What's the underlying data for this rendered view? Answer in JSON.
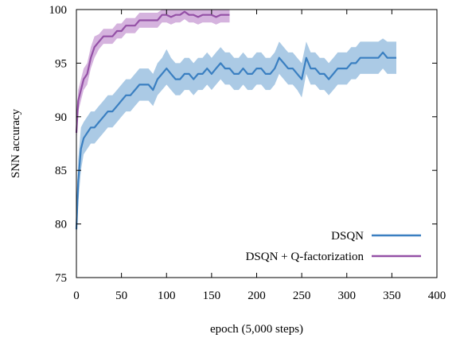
{
  "chart_data": {
    "type": "line",
    "title": "",
    "xlabel": "epoch (5,000 steps)",
    "ylabel": "SNN accuracy",
    "xlim": [
      0,
      400
    ],
    "ylim": [
      75,
      100
    ],
    "xticks": [
      0,
      50,
      100,
      150,
      200,
      250,
      300,
      350,
      400
    ],
    "yticks": [
      75,
      80,
      85,
      90,
      95,
      100
    ],
    "grid": false,
    "legend_position": "lower-right",
    "series": [
      {
        "name": "DSQN",
        "color": "#3a7fc1",
        "band_color": "#8fb8dc",
        "x": [
          0,
          2,
          5,
          8,
          12,
          16,
          20,
          25,
          30,
          35,
          40,
          45,
          50,
          55,
          60,
          65,
          70,
          75,
          80,
          85,
          90,
          95,
          100,
          105,
          110,
          115,
          120,
          125,
          130,
          135,
          140,
          145,
          150,
          155,
          160,
          165,
          170,
          175,
          180,
          185,
          190,
          195,
          200,
          205,
          210,
          215,
          220,
          225,
          230,
          235,
          240,
          245,
          250,
          255,
          260,
          265,
          270,
          275,
          280,
          285,
          290,
          295,
          300,
          305,
          310,
          315,
          320,
          325,
          330,
          335,
          340,
          345,
          350,
          355
        ],
        "values": [
          79.5,
          84.0,
          87.0,
          88.0,
          88.5,
          89.0,
          89.0,
          89.5,
          90.0,
          90.5,
          90.5,
          91.0,
          91.5,
          92.0,
          92.0,
          92.5,
          93.0,
          93.0,
          93.0,
          92.5,
          93.5,
          94.0,
          94.5,
          94.0,
          93.5,
          93.5,
          94.0,
          94.0,
          93.5,
          94.0,
          94.0,
          94.5,
          94.0,
          94.5,
          95.0,
          94.5,
          94.5,
          94.0,
          94.0,
          94.5,
          94.0,
          94.0,
          94.5,
          94.5,
          94.0,
          94.0,
          94.5,
          95.5,
          95.0,
          94.5,
          94.5,
          94.0,
          93.5,
          95.5,
          94.5,
          94.5,
          94.0,
          94.0,
          93.5,
          94.0,
          94.5,
          94.5,
          94.5,
          95.0,
          95.0,
          95.5,
          95.5,
          95.5,
          95.5,
          95.5,
          96.0,
          95.5,
          95.5,
          95.5
        ],
        "lower": [
          78.5,
          82.0,
          85.0,
          86.5,
          87.0,
          87.5,
          87.5,
          88.0,
          88.5,
          89.0,
          89.0,
          89.5,
          90.0,
          90.5,
          90.5,
          91.0,
          91.5,
          91.5,
          91.5,
          91.0,
          92.0,
          92.5,
          93.0,
          92.5,
          92.0,
          92.0,
          92.5,
          92.5,
          92.0,
          92.5,
          92.5,
          93.0,
          92.5,
          93.0,
          93.5,
          93.0,
          93.0,
          92.5,
          92.5,
          93.0,
          92.5,
          92.5,
          93.0,
          93.0,
          92.5,
          92.5,
          93.0,
          94.0,
          93.5,
          93.0,
          93.0,
          92.5,
          91.8,
          94.0,
          93.0,
          93.0,
          92.5,
          92.5,
          92.0,
          92.5,
          93.0,
          93.0,
          93.0,
          93.5,
          93.5,
          94.0,
          94.0,
          94.0,
          94.0,
          94.0,
          94.5,
          94.0,
          94.0,
          94.0
        ],
        "upper": [
          80.5,
          86.0,
          89.0,
          89.5,
          90.0,
          90.5,
          90.5,
          91.0,
          91.5,
          92.0,
          92.0,
          92.5,
          93.0,
          93.5,
          93.5,
          94.0,
          94.5,
          94.5,
          94.5,
          94.0,
          95.0,
          95.5,
          96.3,
          95.5,
          95.0,
          95.0,
          95.5,
          95.5,
          95.0,
          95.5,
          95.5,
          96.0,
          95.5,
          96.0,
          96.5,
          96.0,
          96.0,
          95.5,
          95.5,
          96.0,
          95.5,
          95.5,
          96.0,
          96.0,
          95.5,
          95.5,
          96.0,
          97.0,
          96.5,
          96.0,
          96.0,
          95.5,
          95.0,
          97.0,
          96.0,
          96.0,
          95.5,
          95.5,
          95.0,
          95.5,
          96.0,
          96.0,
          96.0,
          96.5,
          96.5,
          97.0,
          97.0,
          97.0,
          97.0,
          97.0,
          97.3,
          97.0,
          97.0,
          97.0
        ]
      },
      {
        "name": "DSQN + Q-factorization",
        "color": "#9450a6",
        "band_color": "#c79ad3",
        "x": [
          0,
          2,
          5,
          8,
          12,
          16,
          20,
          25,
          30,
          35,
          40,
          45,
          50,
          55,
          60,
          65,
          70,
          75,
          80,
          85,
          90,
          95,
          100,
          105,
          110,
          115,
          120,
          125,
          130,
          135,
          140,
          145,
          150,
          155,
          160,
          165,
          170
        ],
        "values": [
          88.5,
          91.5,
          92.5,
          93.5,
          94.0,
          95.5,
          96.5,
          97.0,
          97.5,
          97.5,
          97.5,
          98.0,
          98.0,
          98.5,
          98.5,
          98.5,
          99.0,
          99.0,
          99.0,
          99.0,
          99.0,
          99.5,
          99.5,
          99.3,
          99.5,
          99.5,
          99.8,
          99.5,
          99.5,
          99.3,
          99.5,
          99.5,
          99.5,
          99.3,
          99.5,
          99.5,
          99.5
        ],
        "lower": [
          87.5,
          90.5,
          91.5,
          92.5,
          93.0,
          94.5,
          95.5,
          96.3,
          96.8,
          96.8,
          96.8,
          97.3,
          97.3,
          97.8,
          97.8,
          97.8,
          98.3,
          98.3,
          98.3,
          98.3,
          98.3,
          98.8,
          98.8,
          98.6,
          98.8,
          98.8,
          99.1,
          98.8,
          98.8,
          98.6,
          98.8,
          98.8,
          98.8,
          98.6,
          98.8,
          98.8,
          98.8
        ],
        "upper": [
          89.5,
          92.5,
          93.5,
          94.5,
          95.0,
          96.5,
          97.5,
          97.7,
          98.2,
          98.2,
          98.2,
          98.7,
          98.7,
          99.2,
          99.2,
          99.2,
          99.7,
          99.7,
          99.7,
          99.7,
          99.7,
          100.0,
          100.0,
          100.0,
          100.0,
          100.0,
          100.0,
          100.0,
          100.0,
          100.0,
          100.0,
          100.0,
          100.0,
          100.0,
          100.0,
          100.0,
          100.0
        ]
      }
    ]
  }
}
